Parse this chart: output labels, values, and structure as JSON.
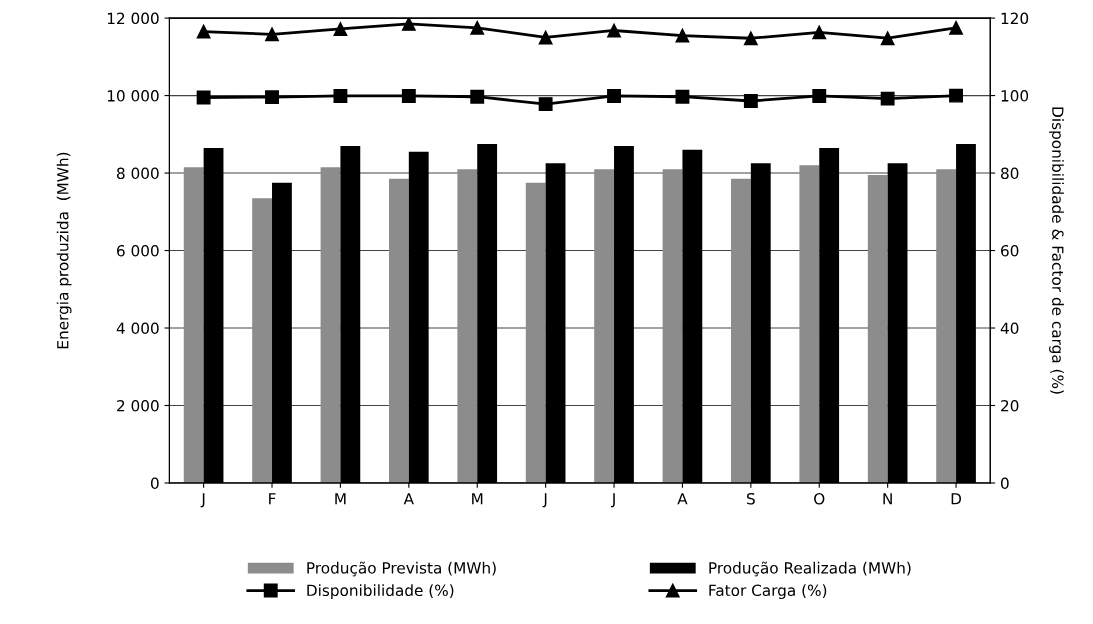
{
  "chart_data": {
    "type": "bar",
    "categories": [
      "J",
      "F",
      "M",
      "A",
      "M",
      "J",
      "J",
      "A",
      "S",
      "O",
      "N",
      "D"
    ],
    "series": [
      {
        "name": "Produção Prevista (MWh)",
        "color": "#8c8c8c",
        "values": [
          8150,
          7350,
          8150,
          7850,
          8100,
          7750,
          8100,
          8100,
          7850,
          8200,
          7950,
          8100
        ]
      },
      {
        "name": "Produção Realizada (MWh)",
        "color": "#000000",
        "values": [
          8650,
          7750,
          8700,
          8550,
          8750,
          8250,
          8700,
          8600,
          8250,
          8650,
          8250,
          8750
        ]
      },
      {
        "name": "Disponibilidade (%)",
        "type": "line",
        "axis": "y2",
        "marker": "square",
        "color": "#000000",
        "values": [
          99.5,
          99.6,
          99.9,
          99.9,
          99.7,
          97.8,
          99.9,
          99.7,
          98.6,
          99.9,
          99.2,
          100
        ]
      },
      {
        "name": "Fator Carga (%)",
        "type": "line",
        "axis": "y2",
        "marker": "triangle",
        "color": "#000000",
        "values": [
          116.5,
          115.8,
          117.2,
          118.5,
          117.5,
          115,
          116.8,
          115.5,
          114.8,
          116.3,
          114.8,
          117.5
        ]
      }
    ],
    "ylabel": "Energia produzida  (MWh)",
    "y2label": "Disponibilidade & Factor de carga (%)",
    "ylim": [
      0,
      12000
    ],
    "yticks": [
      0,
      {
        "value": 2000,
        "label": "2 000"
      },
      {
        "value": 4000,
        "label": "4 000"
      },
      {
        "value": 6000,
        "label": "6 000"
      },
      {
        "value": 8000,
        "label": "8 000"
      },
      {
        "value": 10000,
        "label": "10 000"
      },
      {
        "value": 12000,
        "label": "12 000"
      }
    ],
    "y2lim": [
      0,
      120
    ],
    "y2ticks": [
      0,
      20,
      40,
      60,
      80,
      100,
      120
    ],
    "grid": "y",
    "legend": "bottom",
    "line_style": "solid"
  }
}
